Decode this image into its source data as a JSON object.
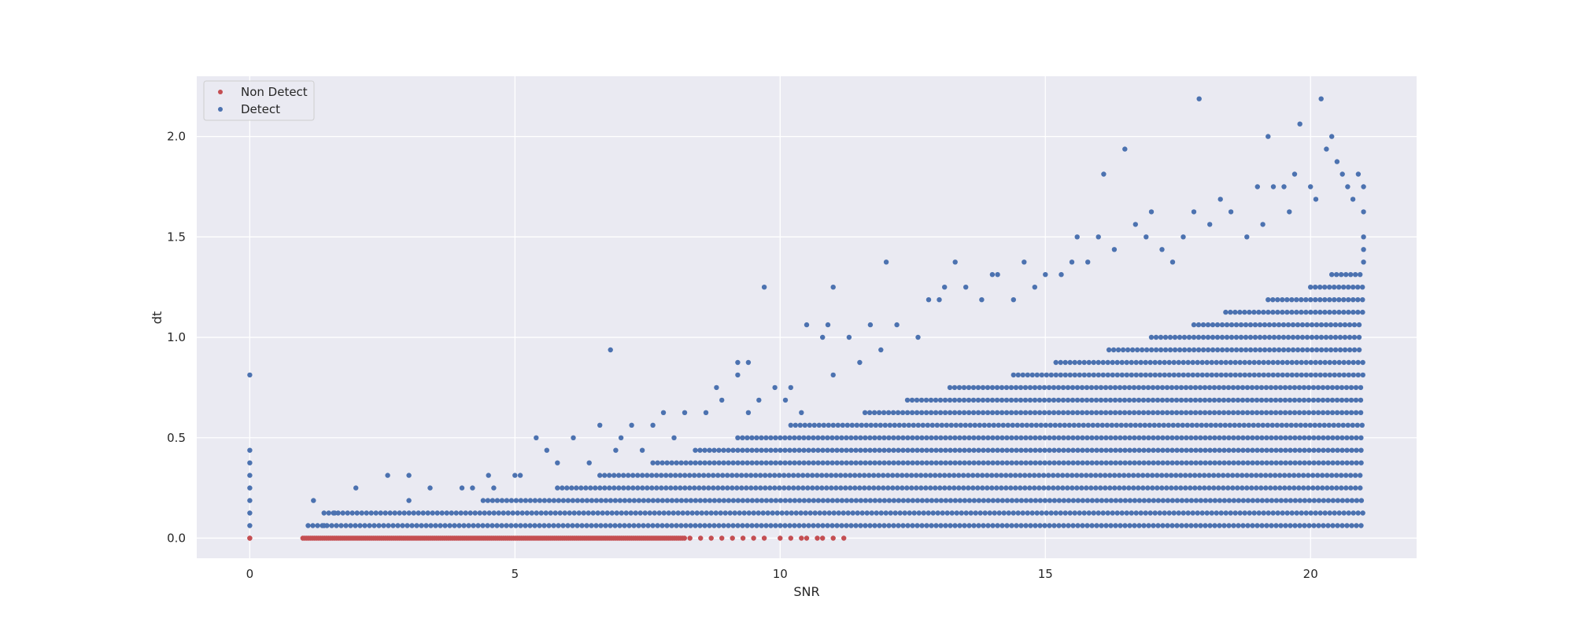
{
  "chart_data": {
    "type": "scatter",
    "title": "",
    "xlabel": "SNR",
    "ylabel": "dt",
    "xlim": [
      -1.0,
      22.0
    ],
    "ylim": [
      -0.1,
      2.3
    ],
    "xticks": [
      0,
      5,
      10,
      15,
      20
    ],
    "yticks": [
      0.0,
      0.5,
      1.0,
      1.5,
      2.0
    ],
    "xtick_labels": [
      "0",
      "5",
      "10",
      "15",
      "20"
    ],
    "ytick_labels": [
      "0.0",
      "0.5",
      "1.0",
      "1.5",
      "2.0"
    ],
    "grid": true,
    "legend_position": "upper-left",
    "background_color": "#eaeaf2",
    "grid_color": "#ffffff",
    "series": [
      {
        "name": "Non Detect",
        "color": "#c44e52",
        "dense_band": {
          "y": 0.0,
          "x_range": [
            1.0,
            8.2
          ]
        },
        "points": [
          [
            0,
            0.0
          ],
          [
            0,
            0.0
          ],
          [
            8.3,
            0.0
          ],
          [
            8.5,
            0.0
          ],
          [
            8.7,
            0.0
          ],
          [
            8.9,
            0.0
          ],
          [
            9.1,
            0.0
          ],
          [
            9.3,
            0.0
          ],
          [
            9.5,
            0.0
          ],
          [
            9.7,
            0.0
          ],
          [
            10.0,
            0.0
          ],
          [
            10.2,
            0.0
          ],
          [
            10.4,
            0.0
          ],
          [
            10.5,
            0.0
          ],
          [
            10.7,
            0.0
          ],
          [
            10.8,
            0.0
          ],
          [
            11.0,
            0.0
          ],
          [
            11.2,
            0.0
          ]
        ]
      },
      {
        "name": "Detect",
        "color": "#4c72b0",
        "quantization_step": 0.0625,
        "density_rows": [
          {
            "y": 0.0625,
            "x_range": [
              1.1,
              21.0
            ]
          },
          {
            "y": 0.125,
            "x_range": [
              1.4,
              21.0
            ]
          },
          {
            "y": 0.1875,
            "x_range": [
              4.4,
              21.0
            ]
          },
          {
            "y": 0.25,
            "x_range": [
              5.8,
              21.0
            ]
          },
          {
            "y": 0.3125,
            "x_range": [
              6.6,
              21.0
            ]
          },
          {
            "y": 0.375,
            "x_range": [
              7.6,
              21.0
            ]
          },
          {
            "y": 0.4375,
            "x_range": [
              8.4,
              21.0
            ]
          },
          {
            "y": 0.5,
            "x_range": [
              9.2,
              21.0
            ]
          },
          {
            "y": 0.5625,
            "x_range": [
              10.2,
              21.0
            ]
          },
          {
            "y": 0.625,
            "x_range": [
              11.6,
              21.0
            ]
          },
          {
            "y": 0.6875,
            "x_range": [
              12.4,
              21.0
            ]
          },
          {
            "y": 0.75,
            "x_range": [
              13.2,
              21.0
            ]
          },
          {
            "y": 0.8125,
            "x_range": [
              14.4,
              21.0
            ]
          },
          {
            "y": 0.875,
            "x_range": [
              15.2,
              21.0
            ]
          },
          {
            "y": 0.9375,
            "x_range": [
              16.2,
              21.0
            ]
          },
          {
            "y": 1.0,
            "x_range": [
              17.0,
              21.0
            ]
          },
          {
            "y": 1.0625,
            "x_range": [
              17.8,
              21.0
            ]
          },
          {
            "y": 1.125,
            "x_range": [
              18.4,
              21.0
            ]
          },
          {
            "y": 1.1875,
            "x_range": [
              19.2,
              21.0
            ]
          },
          {
            "y": 1.25,
            "x_range": [
              20.0,
              21.0
            ]
          },
          {
            "y": 1.3125,
            "x_range": [
              20.4,
              21.0
            ]
          }
        ],
        "points": [
          [
            0,
            0.0625
          ],
          [
            0,
            0.125
          ],
          [
            0,
            0.1875
          ],
          [
            0,
            0.25
          ],
          [
            0,
            0.3125
          ],
          [
            0,
            0.375
          ],
          [
            0,
            0.4375
          ],
          [
            0,
            0.8125
          ],
          [
            1.2,
            0.1875
          ],
          [
            1.4,
            0.0625
          ],
          [
            1.6,
            0.125
          ],
          [
            2.0,
            0.25
          ],
          [
            2.6,
            0.3125
          ],
          [
            3.0,
            0.3125
          ],
          [
            3.0,
            0.1875
          ],
          [
            3.4,
            0.25
          ],
          [
            4.0,
            0.25
          ],
          [
            4.2,
            0.25
          ],
          [
            4.5,
            0.3125
          ],
          [
            4.6,
            0.25
          ],
          [
            5.0,
            0.3125
          ],
          [
            5.1,
            0.3125
          ],
          [
            5.4,
            0.5
          ],
          [
            5.6,
            0.4375
          ],
          [
            5.8,
            0.375
          ],
          [
            6.1,
            0.5
          ],
          [
            6.4,
            0.375
          ],
          [
            6.6,
            0.5625
          ],
          [
            6.8,
            0.9375
          ],
          [
            6.9,
            0.4375
          ],
          [
            7.0,
            0.5
          ],
          [
            7.2,
            0.5625
          ],
          [
            7.4,
            0.4375
          ],
          [
            7.6,
            0.5625
          ],
          [
            7.8,
            0.625
          ],
          [
            8.0,
            0.5
          ],
          [
            8.2,
            0.625
          ],
          [
            8.6,
            0.625
          ],
          [
            8.8,
            0.75
          ],
          [
            8.9,
            0.6875
          ],
          [
            9.2,
            0.875
          ],
          [
            9.2,
            0.8125
          ],
          [
            9.4,
            0.875
          ],
          [
            9.4,
            0.625
          ],
          [
            9.6,
            0.6875
          ],
          [
            9.7,
            1.25
          ],
          [
            9.9,
            0.75
          ],
          [
            10.1,
            0.6875
          ],
          [
            10.2,
            0.75
          ],
          [
            10.4,
            0.625
          ],
          [
            10.5,
            1.0625
          ],
          [
            10.8,
            1.0
          ],
          [
            10.9,
            1.0625
          ],
          [
            11.0,
            0.8125
          ],
          [
            11.0,
            1.25
          ],
          [
            11.3,
            1.0
          ],
          [
            11.5,
            0.875
          ],
          [
            11.7,
            1.0625
          ],
          [
            11.9,
            0.9375
          ],
          [
            12.0,
            1.375
          ],
          [
            12.2,
            1.0625
          ],
          [
            12.6,
            1.0
          ],
          [
            12.8,
            1.1875
          ],
          [
            13.0,
            1.1875
          ],
          [
            13.1,
            1.25
          ],
          [
            13.3,
            1.375
          ],
          [
            13.5,
            1.25
          ],
          [
            13.8,
            1.1875
          ],
          [
            14.0,
            1.3125
          ],
          [
            14.1,
            1.3125
          ],
          [
            14.4,
            1.1875
          ],
          [
            14.6,
            1.375
          ],
          [
            14.8,
            1.25
          ],
          [
            15.0,
            1.3125
          ],
          [
            15.3,
            1.3125
          ],
          [
            15.5,
            1.375
          ],
          [
            15.6,
            1.5
          ],
          [
            15.8,
            1.375
          ],
          [
            16.0,
            1.5
          ],
          [
            16.1,
            1.8125
          ],
          [
            16.3,
            1.4375
          ],
          [
            16.5,
            1.9375
          ],
          [
            16.7,
            1.5625
          ],
          [
            16.9,
            1.5
          ],
          [
            17.0,
            1.625
          ],
          [
            17.2,
            1.4375
          ],
          [
            17.4,
            1.375
          ],
          [
            17.6,
            1.5
          ],
          [
            17.8,
            1.625
          ],
          [
            17.9,
            2.1875
          ],
          [
            18.1,
            1.5625
          ],
          [
            18.3,
            1.6875
          ],
          [
            18.5,
            1.625
          ],
          [
            18.8,
            1.5
          ],
          [
            19.0,
            1.75
          ],
          [
            19.1,
            1.5625
          ],
          [
            19.2,
            2.0
          ],
          [
            19.3,
            1.75
          ],
          [
            19.5,
            1.75
          ],
          [
            19.6,
            1.625
          ],
          [
            19.7,
            1.8125
          ],
          [
            19.8,
            2.0625
          ],
          [
            20.0,
            1.75
          ],
          [
            20.1,
            1.6875
          ],
          [
            20.2,
            2.1875
          ],
          [
            20.3,
            1.9375
          ],
          [
            20.4,
            2.0
          ],
          [
            20.5,
            1.875
          ],
          [
            20.6,
            1.8125
          ],
          [
            20.7,
            1.75
          ],
          [
            20.8,
            1.6875
          ],
          [
            20.9,
            1.8125
          ],
          [
            21.0,
            1.75
          ],
          [
            21.0,
            1.625
          ],
          [
            21.0,
            1.5
          ],
          [
            21.0,
            1.4375
          ],
          [
            21.0,
            1.375
          ]
        ]
      }
    ]
  }
}
